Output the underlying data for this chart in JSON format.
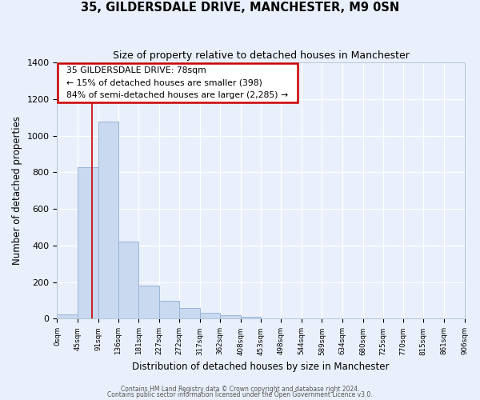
{
  "title": "35, GILDERSDALE DRIVE, MANCHESTER, M9 0SN",
  "subtitle": "Size of property relative to detached houses in Manchester",
  "xlabel": "Distribution of detached houses by size in Manchester",
  "ylabel": "Number of detached properties",
  "bar_heights": [
    25,
    828,
    1075,
    420,
    180,
    100,
    57,
    33,
    18,
    10,
    0,
    0,
    0,
    0,
    0,
    0,
    0,
    0,
    0,
    0
  ],
  "bin_edges": [
    0,
    45,
    91,
    136,
    181,
    227,
    272,
    317,
    362,
    408,
    453,
    498,
    544,
    589,
    634,
    680,
    725,
    770,
    815,
    861,
    906
  ],
  "tick_labels": [
    "0sqm",
    "45sqm",
    "91sqm",
    "136sqm",
    "181sqm",
    "227sqm",
    "272sqm",
    "317sqm",
    "362sqm",
    "408sqm",
    "453sqm",
    "498sqm",
    "544sqm",
    "589sqm",
    "634sqm",
    "680sqm",
    "725sqm",
    "770sqm",
    "815sqm",
    "861sqm",
    "906sqm"
  ],
  "bar_color": "#c9d9f0",
  "bar_edge_color": "#9ab5d8",
  "background_color": "#eaf0fb",
  "grid_color": "#ffffff",
  "red_line_x": 78,
  "annotation_title": "35 GILDERSDALE DRIVE: 78sqm",
  "annotation_line1": "← 15% of detached houses are smaller (398)",
  "annotation_line2": "84% of semi-detached houses are larger (2,285) →",
  "annotation_box_color": "#ffffff",
  "annotation_box_edge": "#cc0000",
  "ylim": [
    0,
    1400
  ],
  "xlim_max": 906,
  "footnote1": "Contains HM Land Registry data © Crown copyright and database right 2024.",
  "footnote2": "Contains public sector information licensed under the Open Government Licence v3.0."
}
